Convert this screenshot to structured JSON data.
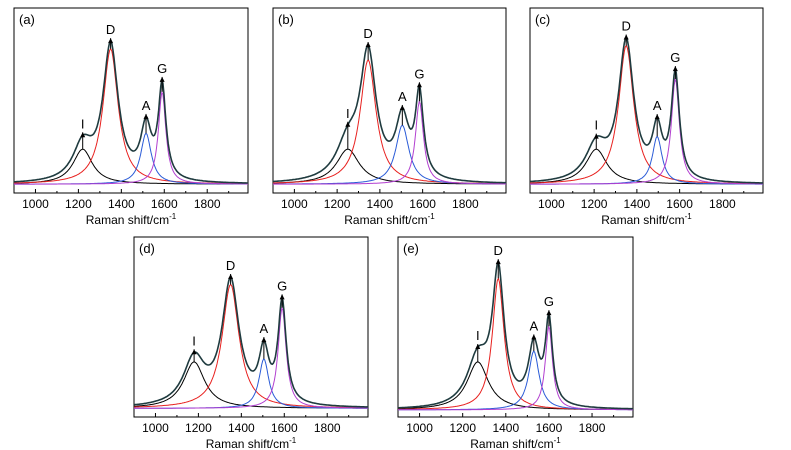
{
  "chart_data": [
    {
      "type": "line",
      "panel_label": "(a)",
      "xlabel": "Raman shift/cm",
      "xlabel_sup": "-1",
      "xlim": [
        900,
        1990
      ],
      "xticks": [
        1000,
        1200,
        1400,
        1600,
        1800
      ],
      "y_axis": "no tick labels",
      "peaks": [
        {
          "label": "I",
          "center": 1220,
          "width": 110,
          "height": 0.22,
          "color": "#000000"
        },
        {
          "label": "D",
          "center": 1350,
          "width": 85,
          "height": 0.85,
          "color": "#e8201e"
        },
        {
          "label": "A",
          "center": 1515,
          "width": 60,
          "height": 0.32,
          "color": "#2a5bd7"
        },
        {
          "label": "G",
          "center": 1590,
          "width": 42,
          "height": 0.58,
          "color": "#b23fd0"
        }
      ],
      "baseline": 0.03,
      "envelope_color": "#1f3b3f",
      "series": [
        {
          "name": "I",
          "color": "#000000"
        },
        {
          "name": "D",
          "color": "#e8201e"
        },
        {
          "name": "A",
          "color": "#2a5bd7"
        },
        {
          "name": "G",
          "color": "#b23fd0"
        },
        {
          "name": "fit",
          "color": "#1f3b3f"
        }
      ]
    },
    {
      "type": "line",
      "panel_label": "(b)",
      "xlabel": "Raman shift/cm",
      "xlabel_sup": "-1",
      "xlim": [
        900,
        1990
      ],
      "xticks": [
        1000,
        1200,
        1400,
        1600,
        1800
      ],
      "y_axis": "no tick labels",
      "peaks": [
        {
          "label": "I",
          "center": 1250,
          "width": 130,
          "height": 0.22,
          "color": "#000000"
        },
        {
          "label": "D",
          "center": 1345,
          "width": 90,
          "height": 0.78,
          "color": "#e8201e"
        },
        {
          "label": "A",
          "center": 1505,
          "width": 75,
          "height": 0.37,
          "color": "#2a5bd7"
        },
        {
          "label": "G",
          "center": 1585,
          "width": 45,
          "height": 0.52,
          "color": "#b23fd0"
        }
      ],
      "baseline": 0.03,
      "envelope_color": "#1f3b3f",
      "series": [
        {
          "name": "I",
          "color": "#000000"
        },
        {
          "name": "D",
          "color": "#e8201e"
        },
        {
          "name": "A",
          "color": "#2a5bd7"
        },
        {
          "name": "G",
          "color": "#b23fd0"
        },
        {
          "name": "fit",
          "color": "#1f3b3f"
        }
      ]
    },
    {
      "type": "line",
      "panel_label": "(c)",
      "xlabel": "Raman shift/cm",
      "xlabel_sup": "-1",
      "xlim": [
        900,
        1990
      ],
      "xticks": [
        1000,
        1200,
        1400,
        1600,
        1800
      ],
      "y_axis": "no tick labels",
      "peaks": [
        {
          "label": "I",
          "center": 1210,
          "width": 120,
          "height": 0.22,
          "color": "#000000"
        },
        {
          "label": "D",
          "center": 1350,
          "width": 85,
          "height": 0.87,
          "color": "#e8201e"
        },
        {
          "label": "A",
          "center": 1495,
          "width": 55,
          "height": 0.3,
          "color": "#2a5bd7"
        },
        {
          "label": "G",
          "center": 1580,
          "width": 45,
          "height": 0.66,
          "color": "#b23fd0"
        }
      ],
      "baseline": 0.03,
      "envelope_color": "#1f3b3f",
      "series": [
        {
          "name": "I",
          "color": "#000000"
        },
        {
          "name": "D",
          "color": "#e8201e"
        },
        {
          "name": "A",
          "color": "#2a5bd7"
        },
        {
          "name": "G",
          "color": "#b23fd0"
        },
        {
          "name": "fit",
          "color": "#1f3b3f"
        }
      ]
    },
    {
      "type": "line",
      "panel_label": "(d)",
      "xlabel": "Raman shift/cm",
      "xlabel_sup": "-1",
      "xlim": [
        900,
        1990
      ],
      "xticks": [
        1000,
        1200,
        1400,
        1600,
        1800
      ],
      "y_axis": "no tick labels",
      "peaks": [
        {
          "label": "I",
          "center": 1180,
          "width": 120,
          "height": 0.3,
          "color": "#000000"
        },
        {
          "label": "D",
          "center": 1350,
          "width": 95,
          "height": 0.8,
          "color": "#e8201e"
        },
        {
          "label": "A",
          "center": 1505,
          "width": 55,
          "height": 0.32,
          "color": "#2a5bd7"
        },
        {
          "label": "G",
          "center": 1590,
          "width": 45,
          "height": 0.65,
          "color": "#b23fd0"
        }
      ],
      "baseline": 0.03,
      "envelope_color": "#1f3b3f",
      "series": [
        {
          "name": "I",
          "color": "#000000"
        },
        {
          "name": "D",
          "color": "#e8201e"
        },
        {
          "name": "A",
          "color": "#2a5bd7"
        },
        {
          "name": "G",
          "color": "#b23fd0"
        },
        {
          "name": "fit",
          "color": "#1f3b3f"
        }
      ]
    },
    {
      "type": "line",
      "panel_label": "(e)",
      "xlabel": "Raman shift/cm",
      "xlabel_sup": "-1",
      "xlim": [
        900,
        1990
      ],
      "xticks": [
        1000,
        1200,
        1400,
        1600,
        1800
      ],
      "y_axis": "no tick labels",
      "peaks": [
        {
          "label": "I",
          "center": 1270,
          "width": 120,
          "height": 0.31,
          "color": "#000000"
        },
        {
          "label": "D",
          "center": 1365,
          "width": 65,
          "height": 0.85,
          "color": "#e8201e"
        },
        {
          "label": "A",
          "center": 1530,
          "width": 60,
          "height": 0.38,
          "color": "#2a5bd7"
        },
        {
          "label": "G",
          "center": 1600,
          "width": 40,
          "height": 0.54,
          "color": "#b23fd0"
        }
      ],
      "baseline": 0.02,
      "envelope_color": "#1f3b3f",
      "series": [
        {
          "name": "I",
          "color": "#000000"
        },
        {
          "name": "D",
          "color": "#e8201e"
        },
        {
          "name": "A",
          "color": "#2a5bd7"
        },
        {
          "name": "G",
          "color": "#b23fd0"
        },
        {
          "name": "fit",
          "color": "#1f3b3f"
        }
      ]
    }
  ]
}
